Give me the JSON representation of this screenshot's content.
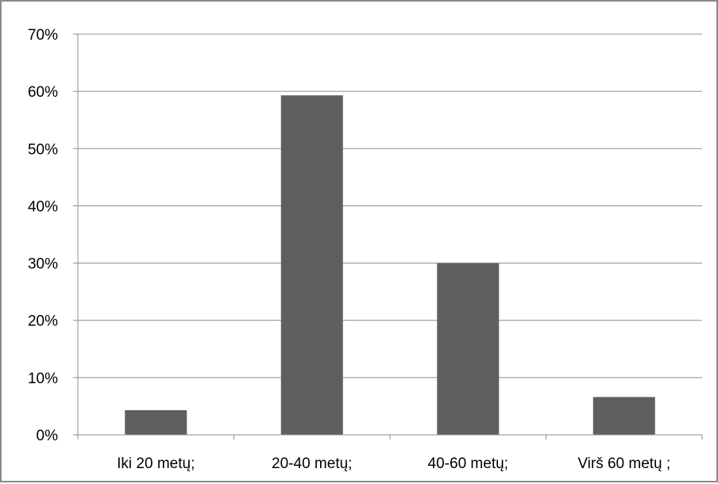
{
  "chart_data": {
    "type": "bar",
    "categories": [
      "Iki 20 metų;",
      "20-40 metų;",
      "40-60 metų;",
      "Virš 60 metų ;"
    ],
    "values": [
      4.3,
      59.3,
      30.0,
      6.6
    ],
    "y_ticks": [
      "0%",
      "10%",
      "20%",
      "30%",
      "40%",
      "50%",
      "60%",
      "70%"
    ],
    "ylim": [
      0,
      70
    ],
    "grid": true,
    "bar_color": "#5f5f5f",
    "grid_color": "#8c8c8c",
    "legend": "none"
  }
}
